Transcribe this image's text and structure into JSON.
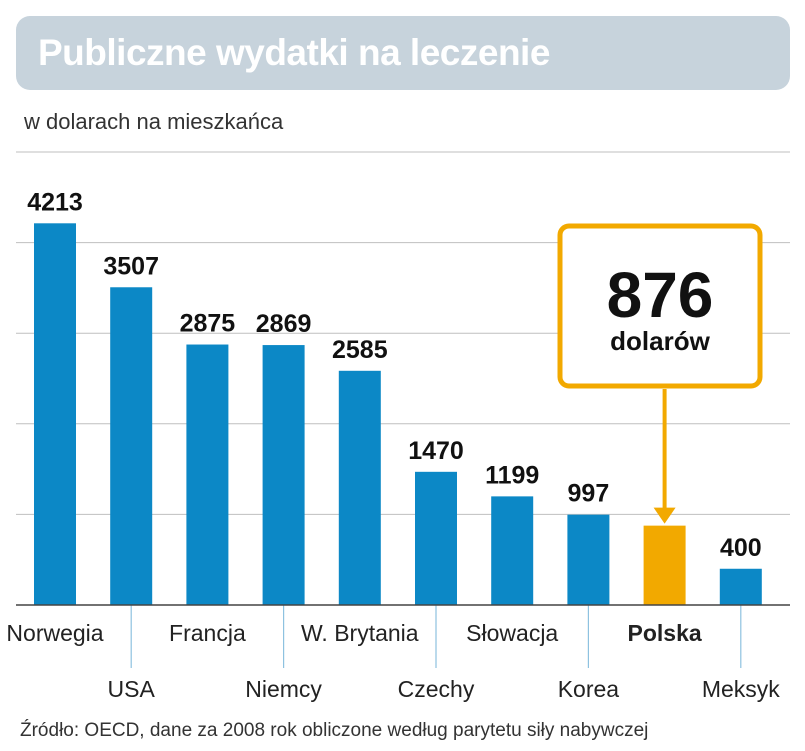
{
  "title": "Publiczne wydatki na leczenie",
  "subtitle": "w dolarach na mieszkańca",
  "source": "Źródło: OECD, dane za 2008 rok obliczone według parytetu siły nabywczej",
  "callout": {
    "value": "876",
    "unit": "dolarów"
  },
  "colors": {
    "bar": "#0c88c6",
    "highlight": "#f2a900",
    "title_bg": "#c7d3dc",
    "grid": "#bfbfbf"
  },
  "chart_data": {
    "type": "bar",
    "title": "Publiczne wydatki na leczenie",
    "ylabel": "w dolarach na mieszkańca",
    "xlabel": "",
    "categories": [
      "Norwegia",
      "USA",
      "Francja",
      "Niemcy",
      "W. Brytania",
      "Czechy",
      "Słowacja",
      "Korea",
      "Polska",
      "Meksyk"
    ],
    "values": [
      4213,
      3507,
      2875,
      2869,
      2585,
      1470,
      1199,
      997,
      876,
      400
    ],
    "value_labels": [
      "4213",
      "3507",
      "2875",
      "2869",
      "2585",
      "1470",
      "1199",
      "997",
      "",
      "400"
    ],
    "highlight": "Polska",
    "ylim": [
      0,
      5000
    ],
    "grid": true
  }
}
